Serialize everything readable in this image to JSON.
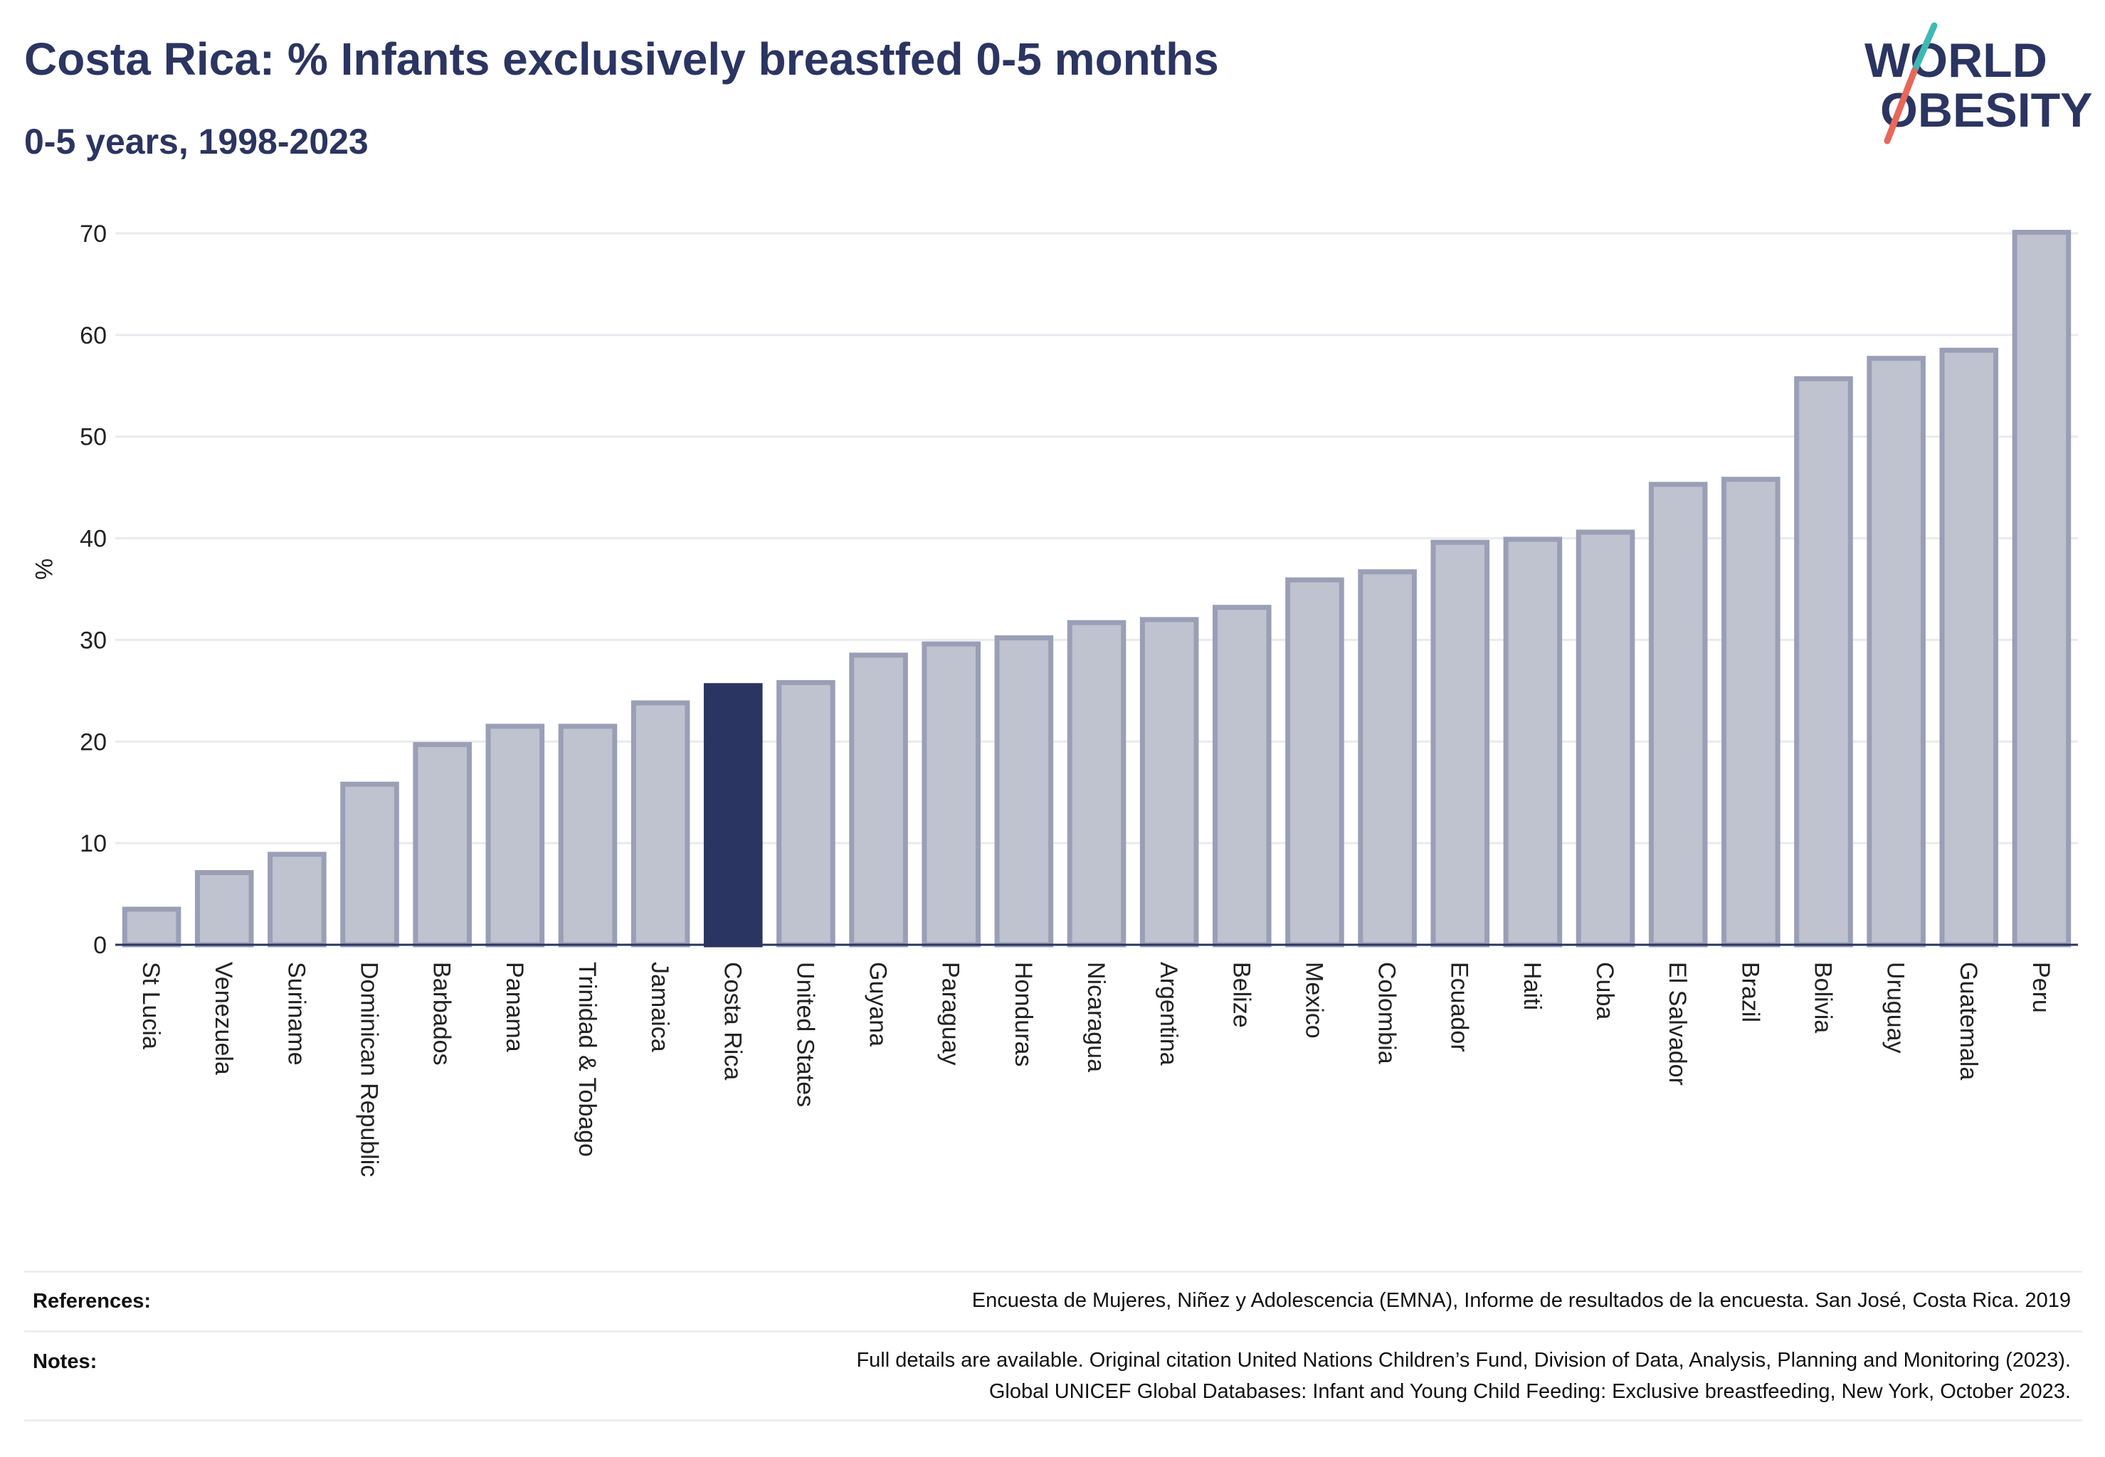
{
  "header": {
    "title": "Costa Rica: % Infants exclusively breastfed 0-5 months",
    "subtitle": "0-5 years, 1998-2023"
  },
  "logo": {
    "line1": "WORLD",
    "line2": "OBESITY",
    "colors": {
      "text": "#2b3561",
      "slash_top": "#3fb8b4",
      "slash_bottom": "#e8675a"
    }
  },
  "chart_data": {
    "type": "bar",
    "title": "Costa Rica: % Infants exclusively breastfed 0-5 months",
    "subtitle": "0-5 years, 1998-2023",
    "xlabel": "",
    "ylabel": "%",
    "ylim": [
      0,
      70
    ],
    "yticks": [
      0,
      10,
      20,
      30,
      40,
      50,
      60,
      70
    ],
    "grid": true,
    "highlight": "Costa Rica",
    "colors": {
      "bar_fill": "#bfc2cf",
      "bar_stroke": "#9a9fb6",
      "highlight": "#2b3561",
      "grid": "#e9eaef",
      "axis": "#2b3561"
    },
    "categories": [
      "St Lucia",
      "Venezuela",
      "Suriname",
      "Dominican Republic",
      "Barbados",
      "Panama",
      "Trinidad & Tobago",
      "Jamaica",
      "Costa Rica",
      "United States",
      "Guyana",
      "Paraguay",
      "Honduras",
      "Nicaragua",
      "Argentina",
      "Belize",
      "Mexico",
      "Colombia",
      "Ecuador",
      "Haiti",
      "Cuba",
      "El Salvador",
      "Brazil",
      "Bolivia",
      "Uruguay",
      "Guatemala",
      "Peru"
    ],
    "values": [
      3.5,
      7.1,
      8.9,
      15.8,
      19.7,
      21.5,
      21.5,
      23.8,
      25.5,
      25.8,
      28.5,
      29.6,
      30.2,
      31.7,
      32.0,
      33.2,
      35.9,
      36.7,
      39.6,
      39.9,
      40.6,
      45.3,
      45.8,
      55.7,
      57.7,
      58.5,
      70.1
    ]
  },
  "footer": {
    "references_label": "References:",
    "references_text": "Encuesta de Mujeres, Niñez y Adolescencia (EMNA), Informe de resultados de la encuesta. San José, Costa Rica. 2019",
    "notes_label": "Notes:",
    "notes_line1": "Full details are available. Original citation United Nations Children’s Fund, Division of Data, Analysis, Planning and Monitoring (2023).",
    "notes_line2": "Global UNICEF Global Databases: Infant and Young Child Feeding: Exclusive breastfeeding, New York, October 2023."
  }
}
